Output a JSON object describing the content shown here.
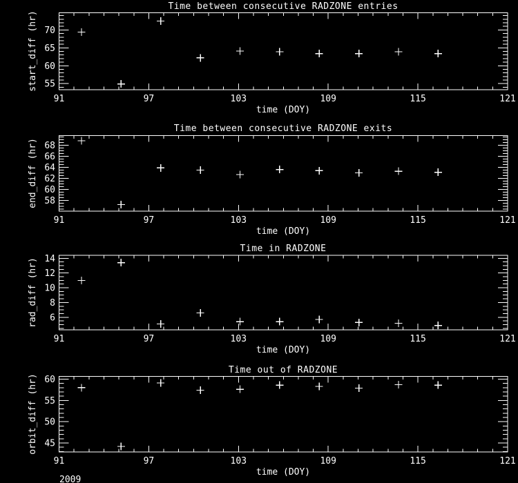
{
  "window": {
    "background": "#000000",
    "foreground": "#ffffff",
    "year_label": "2009"
  },
  "chart_data": [
    {
      "type": "scatter",
      "title": "Time between consecutive RADZONE entries",
      "xlabel": "time (DOY)",
      "ylabel": "start_diff (hr)",
      "marker": "plus",
      "legend": "none",
      "grid": false,
      "xlim": [
        91,
        121
      ],
      "xticks": [
        91,
        97,
        103,
        109,
        115,
        121
      ],
      "x_minor_step": 1,
      "ylim": [
        53.3,
        74.8
      ],
      "yticks": [
        55,
        60,
        65,
        70
      ],
      "y_minor_step": 1,
      "x": [
        92.5,
        95.15,
        97.8,
        100.45,
        103.1,
        105.75,
        108.4,
        111.05,
        113.7,
        116.35
      ],
      "y": [
        69.4,
        54.9,
        72.5,
        62.2,
        64.1,
        63.9,
        63.4,
        63.4,
        63.9,
        63.4
      ]
    },
    {
      "type": "scatter",
      "title": "Time between consecutive RADZONE exits",
      "xlabel": "time (DOY)",
      "ylabel": "end_diff (hr)",
      "marker": "plus",
      "legend": "none",
      "grid": false,
      "xlim": [
        91,
        121
      ],
      "xticks": [
        91,
        97,
        103,
        109,
        115,
        121
      ],
      "x_minor_step": 1,
      "ylim": [
        56.1,
        69.7
      ],
      "yticks": [
        58,
        60,
        62,
        64,
        66,
        68
      ],
      "y_minor_step": 0.5,
      "x": [
        92.5,
        95.15,
        97.8,
        100.45,
        103.1,
        105.75,
        108.4,
        111.05,
        113.7,
        116.35
      ],
      "y": [
        68.8,
        57.3,
        63.9,
        63.5,
        62.7,
        63.6,
        63.4,
        63.0,
        63.3,
        63.1
      ]
    },
    {
      "type": "scatter",
      "title": "Time in RADZONE",
      "xlabel": "time (DOY)",
      "ylabel": "rad_diff (hr)",
      "marker": "plus",
      "legend": "none",
      "grid": false,
      "xlim": [
        91,
        121
      ],
      "xticks": [
        91,
        97,
        103,
        109,
        115,
        121
      ],
      "x_minor_step": 1,
      "ylim": [
        4.3,
        14.4
      ],
      "yticks": [
        6,
        8,
        10,
        12,
        14
      ],
      "y_minor_step": 0.5,
      "x": [
        92.5,
        95.15,
        97.8,
        100.45,
        103.1,
        105.75,
        108.4,
        111.05,
        113.7,
        116.35
      ],
      "y": [
        11.0,
        13.4,
        5.1,
        6.6,
        5.4,
        5.4,
        5.7,
        5.3,
        5.2,
        4.9
      ]
    },
    {
      "type": "scatter",
      "title": "Time out of RADZONE",
      "xlabel": "time (DOY)",
      "ylabel": "orbit_diff (hr)",
      "marker": "plus",
      "legend": "none",
      "grid": false,
      "xlim": [
        91,
        121
      ],
      "xticks": [
        91,
        97,
        103,
        109,
        115,
        121
      ],
      "x_minor_step": 1,
      "ylim": [
        42.9,
        60.6
      ],
      "yticks": [
        45,
        50,
        55,
        60
      ],
      "y_minor_step": 1,
      "x": [
        92.5,
        95.15,
        97.8,
        100.45,
        103.1,
        105.75,
        108.4,
        111.05,
        113.7,
        116.35
      ],
      "y": [
        58.0,
        44.2,
        59.1,
        57.4,
        57.6,
        58.6,
        58.3,
        57.9,
        58.7,
        58.6
      ]
    }
  ]
}
